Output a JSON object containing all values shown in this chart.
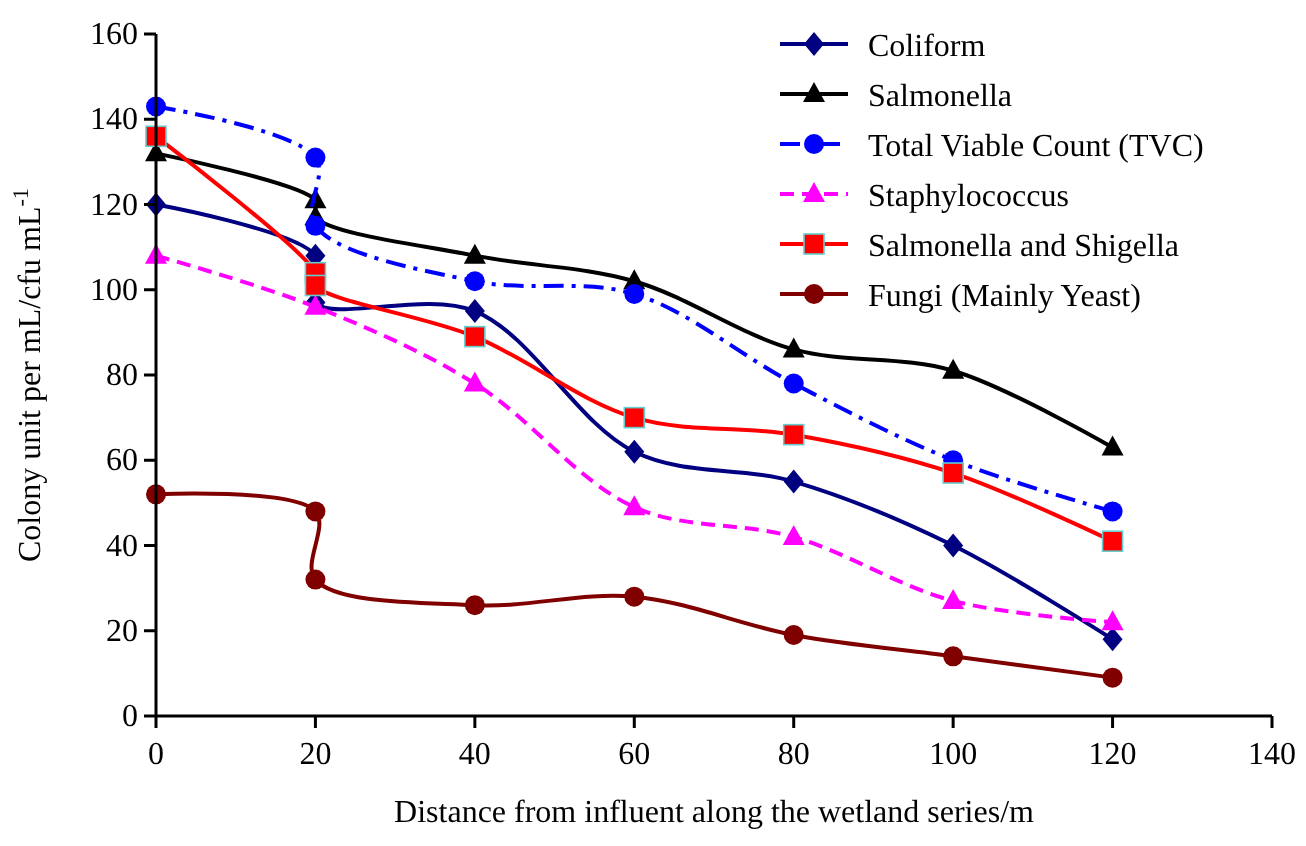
{
  "chart_data": {
    "type": "line",
    "xlabel": "Distance from influent along the wetland series/m",
    "ylabel": "Colony unit per mL/cfu mL$^{-1}$",
    "xlim": [
      0,
      140
    ],
    "xticks": [
      0,
      20,
      40,
      60,
      80,
      100,
      120,
      140
    ],
    "ylim": [
      0,
      160
    ],
    "yticks": [
      0,
      20,
      40,
      60,
      80,
      100,
      120,
      140,
      160
    ],
    "grid": false,
    "legend": "top right",
    "series": [
      {
        "name": "Coliform",
        "color": "#000080",
        "marker": "diamond",
        "line_style": "solid",
        "x": [
          0,
          20,
          20,
          40,
          60,
          80,
          100,
          120
        ],
        "values": [
          120,
          108,
          97,
          95,
          62,
          55,
          40,
          18
        ]
      },
      {
        "name": "Salmonella",
        "color": "#000000",
        "marker": "triangle",
        "line_style": "solid",
        "x": [
          0,
          20,
          20,
          40,
          60,
          80,
          100,
          120
        ],
        "values": [
          132,
          121,
          117,
          108,
          102,
          86,
          81,
          63
        ]
      },
      {
        "name": "Total Viable Count (TVC)",
        "color": "#0000ff",
        "marker": "circle",
        "line_style": "dashdot",
        "x": [
          0,
          20,
          20,
          40,
          60,
          80,
          100,
          120
        ],
        "values": [
          143,
          131,
          115,
          102,
          99,
          78,
          60,
          48
        ]
      },
      {
        "name": "Staphylococcus",
        "color": "#ff00ff",
        "marker": "triangle",
        "line_style": "dashed",
        "x": [
          0,
          20,
          40,
          60,
          80,
          100,
          120
        ],
        "values": [
          108,
          96,
          78,
          49,
          42,
          27,
          22
        ]
      },
      {
        "name": "Salmonella and Shigella",
        "color": "#ff0000",
        "marker": "square",
        "line_style": "solid",
        "x": [
          0,
          20,
          20,
          40,
          60,
          80,
          100,
          120
        ],
        "values": [
          136,
          104,
          101,
          89,
          70,
          66,
          57,
          41
        ]
      },
      {
        "name": "Fungi (Mainly Yeast)",
        "color": "#800000",
        "marker": "circle",
        "line_style": "solid",
        "x": [
          0,
          20,
          20,
          40,
          60,
          80,
          100,
          120
        ],
        "values": [
          52,
          48,
          32,
          26,
          28,
          19,
          14,
          9
        ]
      }
    ]
  }
}
